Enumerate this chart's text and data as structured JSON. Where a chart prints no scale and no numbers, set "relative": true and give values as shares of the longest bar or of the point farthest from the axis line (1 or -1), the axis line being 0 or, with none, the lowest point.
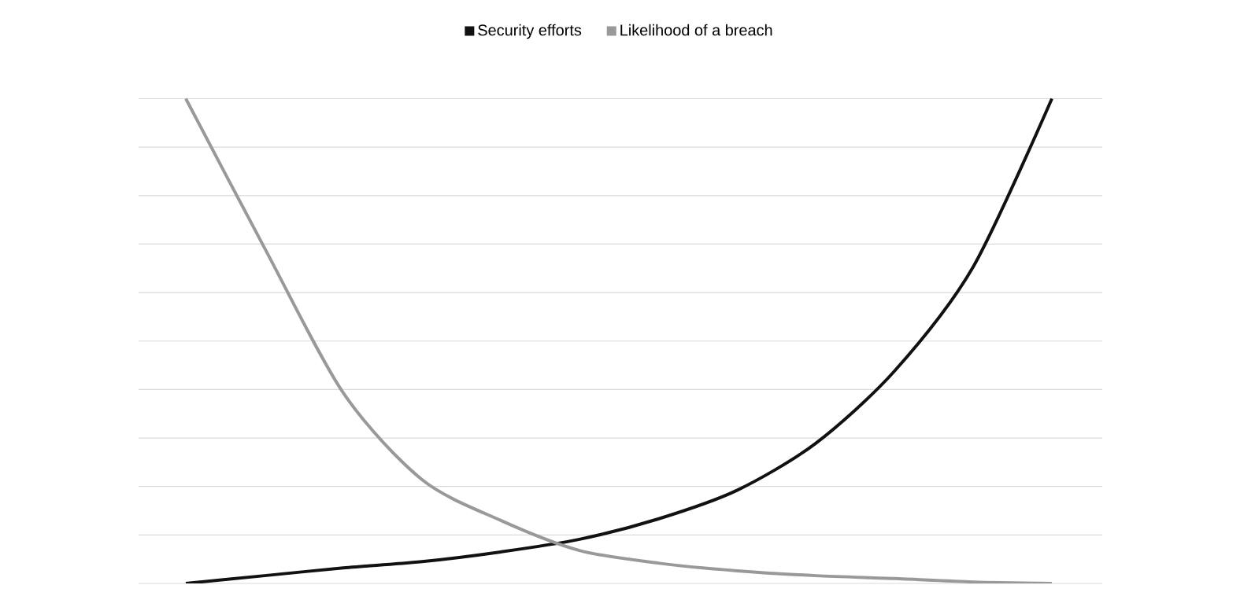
{
  "chart_data": {
    "type": "line",
    "relative": true,
    "grid": "y",
    "legend": "top",
    "marker": "none",
    "line_style": "solid",
    "categories": [
      null,
      null,
      null,
      null,
      null,
      null,
      null,
      null,
      null,
      null,
      null,
      null
    ],
    "series": [
      {
        "name": "Security efforts",
        "color": "#111111",
        "values": [
          0,
          0.016,
          0.032,
          0.045,
          0.065,
          0.091,
          0.133,
          0.192,
          0.289,
          0.438,
          0.653,
          1.0
        ]
      },
      {
        "name": "Likelihood of a breach",
        "color": "#999999",
        "values": [
          1.0,
          0.692,
          0.393,
          0.214,
          0.13,
          0.068,
          0.042,
          0.026,
          0.016,
          0.01,
          0.003,
          0
        ]
      }
    ]
  }
}
